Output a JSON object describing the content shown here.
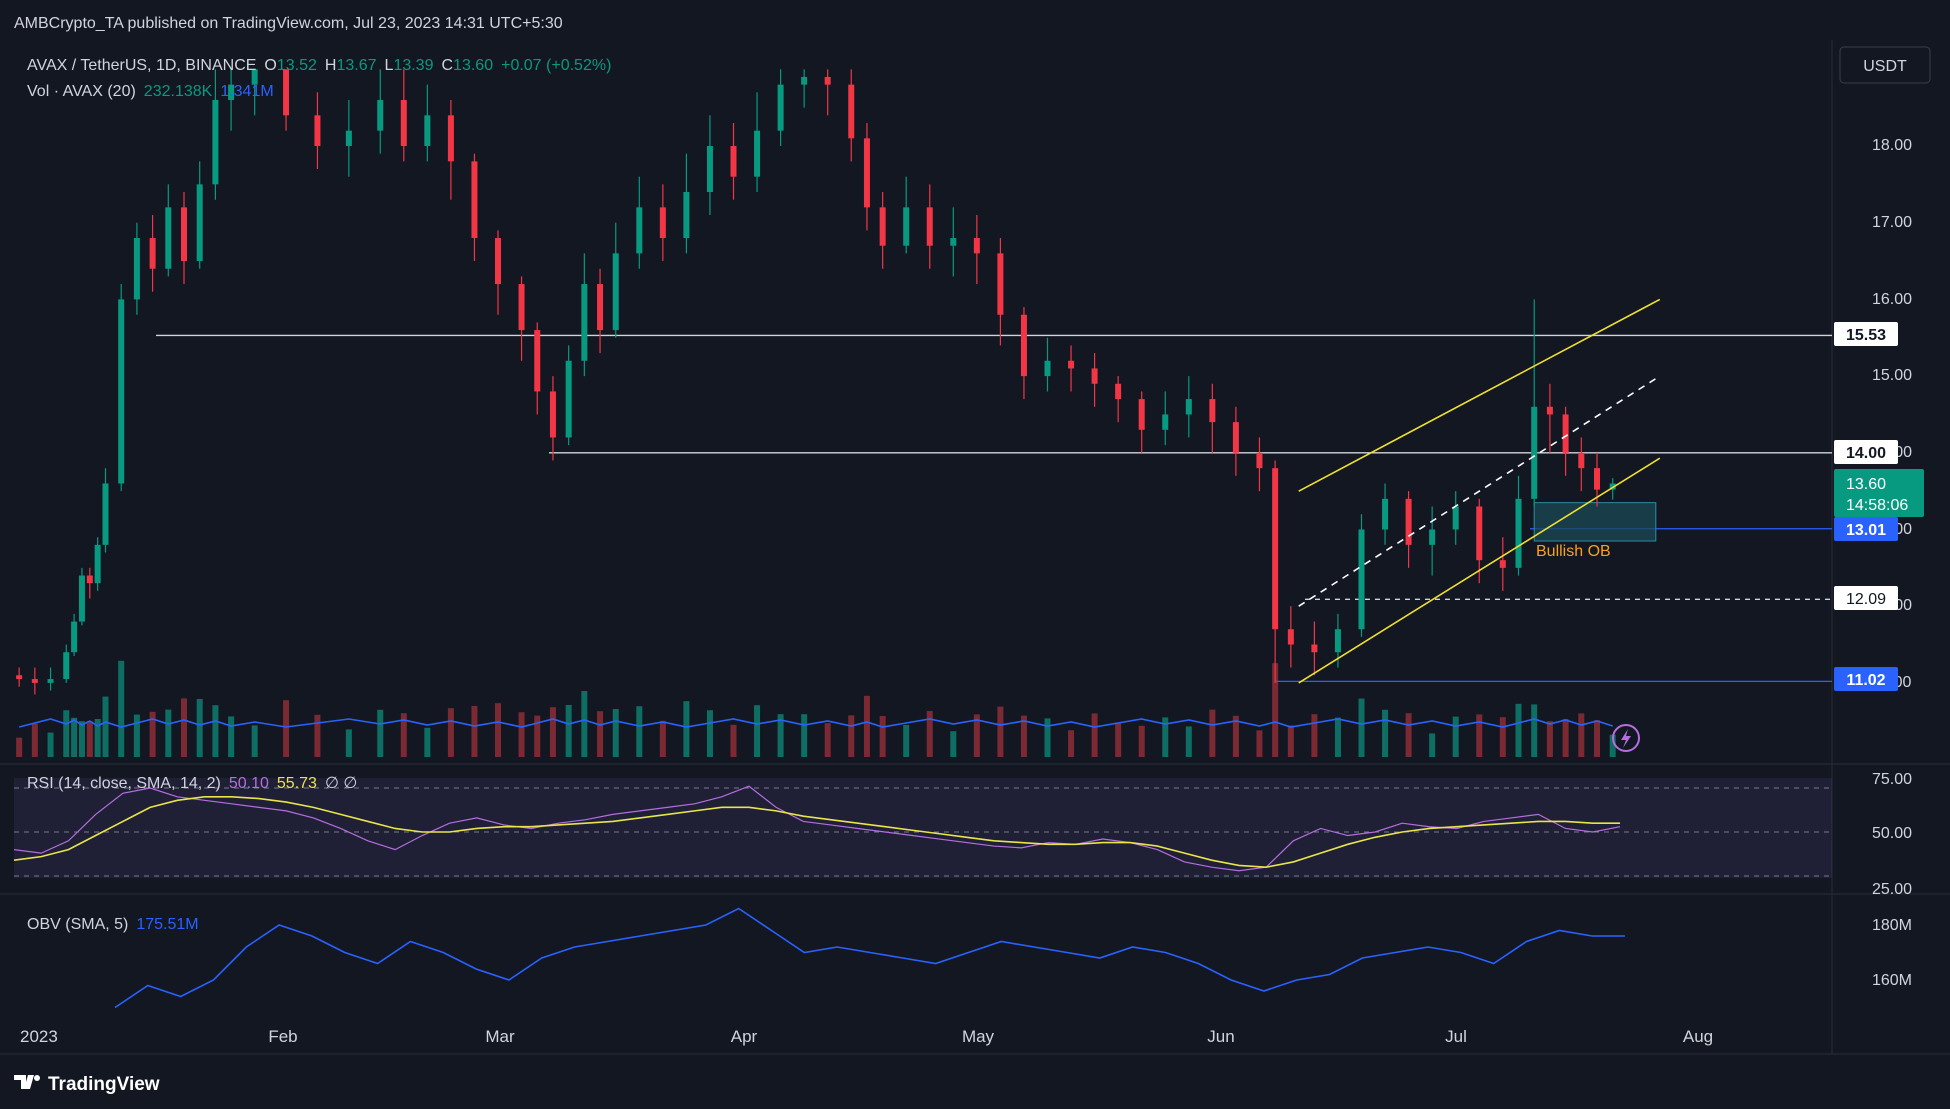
{
  "header": {
    "published": "AMBCrypto_TA published on TradingView.com, Jul 23, 2023 14:31 UTC+5:30"
  },
  "legend": {
    "symbol": "AVAX / TetherUS, 1D, BINANCE",
    "o_label": "O",
    "o_value": "13.52",
    "h_label": "H",
    "h_value": "13.67",
    "l_label": "L",
    "l_value": "13.39",
    "c_label": "C",
    "c_value": "13.60",
    "change": "+0.07 (+0.52%)",
    "vol_label": "Vol · AVAX (20)",
    "vol_value": "232.138K",
    "vol_ma": "1.341M"
  },
  "currency_button": "USDT",
  "colors": {
    "background": "#131722",
    "up": "#089981",
    "down": "#f23645",
    "vol_up": "#0e6e63",
    "vol_down": "#7b2a33",
    "ma": "#2962ff",
    "channel": "#f0e030",
    "rsi": "#b46ee0",
    "rsi_sma": "#e8e54a",
    "obv": "#2962ff",
    "ob_fill": "#1b4a56",
    "ob_label": "#f7a21b"
  },
  "price_axis": [
    "18.00",
    "17.00",
    "16.00",
    "15.00",
    "14.00",
    "13.00",
    "12.00",
    "11.00"
  ],
  "level_tags": [
    {
      "text": "15.53",
      "style": "white"
    },
    {
      "text": "14.00",
      "style": "white"
    },
    {
      "text": "13.01",
      "style": "blue"
    },
    {
      "text": "12.09",
      "style": "white"
    },
    {
      "text": "11.02",
      "style": "blue"
    }
  ],
  "last_price_tag": {
    "price": "13.60",
    "countdown": "14:58:06"
  },
  "annotation": {
    "bullish_ob": "Bullish OB"
  },
  "rsi": {
    "label": "RSI (14, close, SMA, 14, 2)",
    "value": "50.10",
    "sma_value": "55.73",
    "extra": "∅  ∅",
    "axis": [
      "75.00",
      "50.00",
      "25.00"
    ]
  },
  "obv": {
    "label": "OBV (SMA, 5)",
    "value": "175.51M",
    "axis": [
      "180M",
      "160M"
    ]
  },
  "time_axis": [
    "2023",
    "Feb",
    "Mar",
    "Apr",
    "May",
    "Jun",
    "Jul",
    "Aug"
  ],
  "footer": {
    "brand": "TradingView"
  },
  "chart_data": {
    "type": "candlestick",
    "symbol": "AVAX / TetherUS",
    "interval": "1D",
    "ylim": [
      10.5,
      19.0
    ],
    "horizontal_levels": [
      15.53,
      14.0,
      13.01,
      12.09,
      11.02
    ],
    "order_block": {
      "label": "Bullish OB",
      "price_top": 13.35,
      "price_bottom": 12.85
    },
    "trend_channel": {
      "upper": [
        [
          "2023-06-13",
          13.5
        ],
        [
          "2023-07-29",
          16.0
        ]
      ],
      "middle": [
        [
          "2023-06-13",
          12.0
        ],
        [
          "2023-07-29",
          15.0
        ]
      ],
      "lower": [
        [
          "2023-06-13",
          11.0
        ],
        [
          "2023-07-29",
          13.93
        ]
      ]
    },
    "ohlc_daily": [
      [
        "2023-01-01",
        11.1,
        11.05,
        10.95,
        11.2
      ],
      [
        "2023-01-03",
        11.05,
        11.0,
        10.85,
        11.2
      ],
      [
        "2023-01-05",
        11.0,
        11.05,
        10.9,
        11.2
      ],
      [
        "2023-01-07",
        11.05,
        11.4,
        11.0,
        11.5
      ],
      [
        "2023-01-08",
        11.4,
        11.8,
        11.35,
        11.9
      ],
      [
        "2023-01-09",
        11.8,
        12.4,
        11.75,
        12.5
      ],
      [
        "2023-01-10",
        12.4,
        12.3,
        12.1,
        12.5
      ],
      [
        "2023-01-11",
        12.3,
        12.8,
        12.2,
        12.9
      ],
      [
        "2023-01-12",
        12.8,
        13.6,
        12.7,
        13.8
      ],
      [
        "2023-01-14",
        13.6,
        16.0,
        13.5,
        16.2
      ],
      [
        "2023-01-16",
        16.0,
        16.8,
        15.8,
        17.0
      ],
      [
        "2023-01-18",
        16.8,
        16.4,
        16.1,
        17.1
      ],
      [
        "2023-01-20",
        16.4,
        17.2,
        16.3,
        17.5
      ],
      [
        "2023-01-22",
        17.2,
        16.5,
        16.2,
        17.4
      ],
      [
        "2023-01-24",
        16.5,
        17.5,
        16.4,
        17.8
      ],
      [
        "2023-01-26",
        17.5,
        18.6,
        17.3,
        19.0
      ],
      [
        "2023-01-28",
        18.6,
        18.8,
        18.2,
        19.0
      ],
      [
        "2023-01-31",
        18.8,
        19.0,
        18.4,
        19.0
      ],
      [
        "2023-02-04",
        19.0,
        18.4,
        18.2,
        19.0
      ],
      [
        "2023-02-08",
        18.4,
        18.0,
        17.7,
        18.7
      ],
      [
        "2023-02-12",
        18.0,
        18.2,
        17.6,
        18.6
      ],
      [
        "2023-02-16",
        18.2,
        18.6,
        17.9,
        19.0
      ],
      [
        "2023-02-19",
        18.6,
        18.0,
        17.8,
        19.0
      ],
      [
        "2023-02-22",
        18.0,
        18.4,
        17.8,
        18.8
      ],
      [
        "2023-02-25",
        18.4,
        17.8,
        17.3,
        18.6
      ],
      [
        "2023-02-28",
        17.8,
        16.8,
        16.5,
        17.9
      ],
      [
        "2023-03-03",
        16.8,
        16.2,
        15.8,
        16.9
      ],
      [
        "2023-03-06",
        16.2,
        15.6,
        15.2,
        16.3
      ],
      [
        "2023-03-08",
        15.6,
        14.8,
        14.5,
        15.7
      ],
      [
        "2023-03-10",
        14.8,
        14.2,
        13.9,
        15.0
      ],
      [
        "2023-03-12",
        14.2,
        15.2,
        14.1,
        15.4
      ],
      [
        "2023-03-14",
        15.2,
        16.2,
        15.0,
        16.6
      ],
      [
        "2023-03-16",
        16.2,
        15.6,
        15.3,
        16.4
      ],
      [
        "2023-03-18",
        15.6,
        16.6,
        15.5,
        17.0
      ],
      [
        "2023-03-21",
        16.6,
        17.2,
        16.4,
        17.6
      ],
      [
        "2023-03-24",
        17.2,
        16.8,
        16.5,
        17.5
      ],
      [
        "2023-03-27",
        16.8,
        17.4,
        16.6,
        17.9
      ],
      [
        "2023-03-30",
        17.4,
        18.0,
        17.1,
        18.4
      ],
      [
        "2023-04-02",
        18.0,
        17.6,
        17.3,
        18.3
      ],
      [
        "2023-04-05",
        17.6,
        18.2,
        17.4,
        18.7
      ],
      [
        "2023-04-08",
        18.2,
        18.8,
        18.0,
        19.0
      ],
      [
        "2023-04-11",
        18.8,
        18.9,
        18.5,
        19.0
      ],
      [
        "2023-04-14",
        18.9,
        18.8,
        18.4,
        19.0
      ],
      [
        "2023-04-17",
        18.8,
        18.1,
        17.8,
        19.0
      ],
      [
        "2023-04-19",
        18.1,
        17.2,
        16.9,
        18.3
      ],
      [
        "2023-04-21",
        17.2,
        16.7,
        16.4,
        17.4
      ],
      [
        "2023-04-24",
        16.7,
        17.2,
        16.6,
        17.6
      ],
      [
        "2023-04-27",
        17.2,
        16.7,
        16.4,
        17.5
      ],
      [
        "2023-04-30",
        16.7,
        16.8,
        16.3,
        17.2
      ],
      [
        "2023-05-03",
        16.8,
        16.6,
        16.2,
        17.1
      ],
      [
        "2023-05-06",
        16.6,
        15.8,
        15.4,
        16.8
      ],
      [
        "2023-05-09",
        15.8,
        15.0,
        14.7,
        15.9
      ],
      [
        "2023-05-12",
        15.0,
        15.2,
        14.8,
        15.5
      ],
      [
        "2023-05-15",
        15.2,
        15.1,
        14.8,
        15.4
      ],
      [
        "2023-05-18",
        15.1,
        14.9,
        14.6,
        15.3
      ],
      [
        "2023-05-21",
        14.9,
        14.7,
        14.4,
        15.0
      ],
      [
        "2023-05-24",
        14.7,
        14.3,
        14.0,
        14.8
      ],
      [
        "2023-05-27",
        14.3,
        14.5,
        14.1,
        14.8
      ],
      [
        "2023-05-30",
        14.5,
        14.7,
        14.2,
        15.0
      ],
      [
        "2023-06-02",
        14.7,
        14.4,
        14.0,
        14.9
      ],
      [
        "2023-06-05",
        14.4,
        14.0,
        13.7,
        14.6
      ],
      [
        "2023-06-08",
        14.0,
        13.8,
        13.5,
        14.2
      ],
      [
        "2023-06-10",
        13.8,
        11.7,
        11.0,
        13.9
      ],
      [
        "2023-06-12",
        11.7,
        11.5,
        11.2,
        12.0
      ],
      [
        "2023-06-15",
        11.5,
        11.4,
        11.1,
        11.8
      ],
      [
        "2023-06-18",
        11.4,
        11.7,
        11.2,
        11.9
      ],
      [
        "2023-06-21",
        11.7,
        13.0,
        11.6,
        13.2
      ],
      [
        "2023-06-24",
        13.0,
        13.4,
        12.8,
        13.6
      ],
      [
        "2023-06-27",
        13.4,
        12.8,
        12.5,
        13.5
      ],
      [
        "2023-06-30",
        12.8,
        13.0,
        12.4,
        13.3
      ],
      [
        "2023-07-03",
        13.0,
        13.3,
        12.8,
        13.5
      ],
      [
        "2023-07-06",
        13.3,
        12.6,
        12.3,
        13.4
      ],
      [
        "2023-07-09",
        12.6,
        12.5,
        12.2,
        12.9
      ],
      [
        "2023-07-11",
        12.5,
        13.4,
        12.4,
        13.7
      ],
      [
        "2023-07-13",
        13.4,
        14.6,
        13.3,
        16.0
      ],
      [
        "2023-07-15",
        14.6,
        14.5,
        14.0,
        14.9
      ],
      [
        "2023-07-17",
        14.5,
        14.0,
        13.7,
        14.6
      ],
      [
        "2023-07-19",
        14.0,
        13.8,
        13.5,
        14.2
      ],
      [
        "2023-07-21",
        13.8,
        13.52,
        13.3,
        14.0
      ],
      [
        "2023-07-23",
        13.52,
        13.6,
        13.39,
        13.67
      ]
    ],
    "volume_ma_level": "1.341M",
    "rsi_series": [
      40,
      38,
      45,
      60,
      72,
      75,
      70,
      68,
      66,
      64,
      62,
      58,
      52,
      45,
      40,
      48,
      55,
      58,
      54,
      52,
      55,
      57,
      60,
      62,
      64,
      66,
      70,
      76,
      64,
      56,
      54,
      52,
      50,
      48,
      46,
      44,
      42,
      41,
      44,
      43,
      46,
      44,
      40,
      33,
      30,
      28,
      30,
      45,
      52,
      48,
      50,
      55,
      53,
      52,
      56,
      58,
      60,
      52,
      50,
      53
    ],
    "rsi_sma_series": [
      34,
      36,
      40,
      48,
      56,
      64,
      68,
      70,
      70,
      69,
      67,
      64,
      60,
      56,
      52,
      50,
      50,
      52,
      53,
      53,
      54,
      55,
      56,
      58,
      60,
      62,
      64,
      64,
      62,
      59,
      57,
      55,
      53,
      51,
      49,
      47,
      45,
      44,
      43,
      43,
      44,
      44,
      42,
      38,
      34,
      31,
      30,
      33,
      38,
      43,
      47,
      50,
      52,
      53,
      54,
      55,
      56,
      56,
      55,
      55
    ],
    "obv_series": [
      150,
      158,
      154,
      160,
      172,
      180,
      176,
      170,
      166,
      174,
      170,
      164,
      160,
      168,
      172,
      174,
      176,
      178,
      180,
      186,
      178,
      170,
      172,
      170,
      168,
      166,
      170,
      174,
      172,
      170,
      168,
      172,
      170,
      166,
      160,
      156,
      160,
      162,
      168,
      170,
      172,
      170,
      166,
      174,
      178,
      176,
      176
    ]
  }
}
